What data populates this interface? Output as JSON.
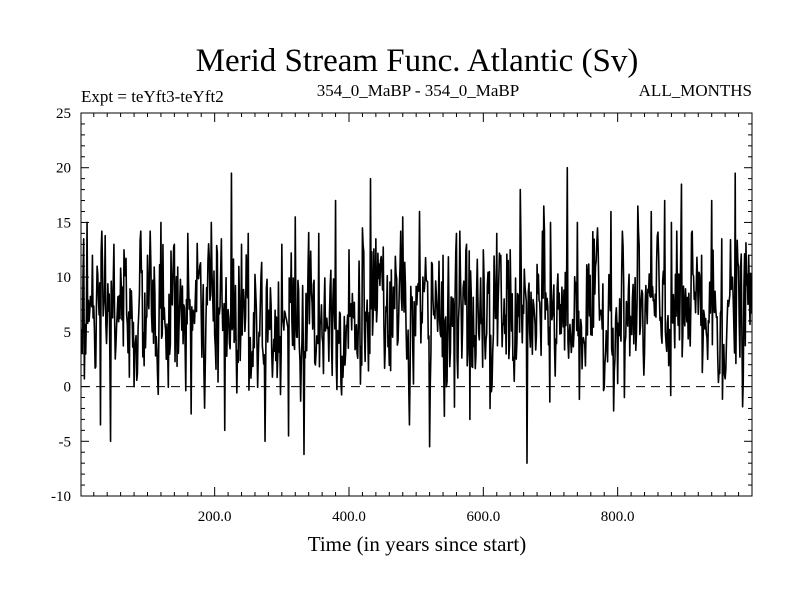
{
  "chart_data": {
    "type": "line",
    "title": "Merid Stream Func. Atlantic (Sv)",
    "subtitle_left": "Expt = teYft3-teYft2",
    "subtitle_center": "354_0_MaBP - 354_0_MaBP",
    "subtitle_right": "ALL_MONTHS",
    "xlabel": "Time (in years since start)",
    "ylabel": "",
    "xlim": [
      1,
      1000
    ],
    "ylim": [
      -10,
      25
    ],
    "x_ticks": [
      200,
      400,
      600,
      800
    ],
    "x_tick_labels": [
      "200.0",
      "400.0",
      "600.0",
      "800.0"
    ],
    "y_ticks": [
      -10,
      -5,
      0,
      5,
      10,
      15,
      20,
      25
    ],
    "y_tick_labels": [
      "-10",
      "-5",
      "0",
      "5",
      "10",
      "15",
      "20",
      "25"
    ],
    "reference_line": {
      "y": 0,
      "style": "dashed"
    },
    "series": [
      {
        "name": "Merid Stream Func. Atlantic",
        "color": "#000000",
        "n_points": 1000,
        "mean": 6.3,
        "std": 3.3,
        "x_start": 1,
        "x_step": 1,
        "anchors": [
          [
            5,
            13.5
          ],
          [
            10,
            15.0
          ],
          [
            18,
            12.0
          ],
          [
            25,
            11.0
          ],
          [
            30,
            -3.5
          ],
          [
            45,
            -5.0
          ],
          [
            50,
            13.0
          ],
          [
            65,
            12.5
          ],
          [
            80,
            0.0
          ],
          [
            100,
            12.0
          ],
          [
            120,
            15.0
          ],
          [
            140,
            13.0
          ],
          [
            160,
            14.0
          ],
          [
            165,
            -2.5
          ],
          [
            195,
            15.0
          ],
          [
            210,
            13.5
          ],
          [
            215,
            -4.0
          ],
          [
            225,
            19.5
          ],
          [
            240,
            13.0
          ],
          [
            250,
            14.0
          ],
          [
            275,
            -5.0
          ],
          [
            300,
            13.0
          ],
          [
            310,
            -4.5
          ],
          [
            320,
            15.5
          ],
          [
            333,
            -6.2
          ],
          [
            355,
            14.0
          ],
          [
            380,
            17.0
          ],
          [
            400,
            12.5
          ],
          [
            420,
            14.5
          ],
          [
            432,
            19.0
          ],
          [
            440,
            13.5
          ],
          [
            480,
            15.5
          ],
          [
            490,
            -3.5
          ],
          [
            505,
            16.0
          ],
          [
            520,
            -5.5
          ],
          [
            540,
            12.0
          ],
          [
            560,
            14.0
          ],
          [
            575,
            13.0
          ],
          [
            580,
            -3.0
          ],
          [
            600,
            12.5
          ],
          [
            610,
            -2.0
          ],
          [
            620,
            14.0
          ],
          [
            640,
            12.5
          ],
          [
            655,
            18.0
          ],
          [
            665,
            -7.0
          ],
          [
            690,
            16.5
          ],
          [
            700,
            15.0
          ],
          [
            725,
            20.0
          ],
          [
            740,
            15.0
          ],
          [
            770,
            14.5
          ],
          [
            790,
            16.0
          ],
          [
            810,
            -1.0
          ],
          [
            830,
            16.5
          ],
          [
            850,
            16.0
          ],
          [
            870,
            17.0
          ],
          [
            880,
            15.0
          ],
          [
            895,
            18.5
          ],
          [
            910,
            14.0
          ],
          [
            925,
            12.0
          ],
          [
            940,
            17.0
          ],
          [
            955,
            13.5
          ],
          [
            975,
            19.5
          ],
          [
            995,
            12.0
          ]
        ]
      }
    ]
  }
}
